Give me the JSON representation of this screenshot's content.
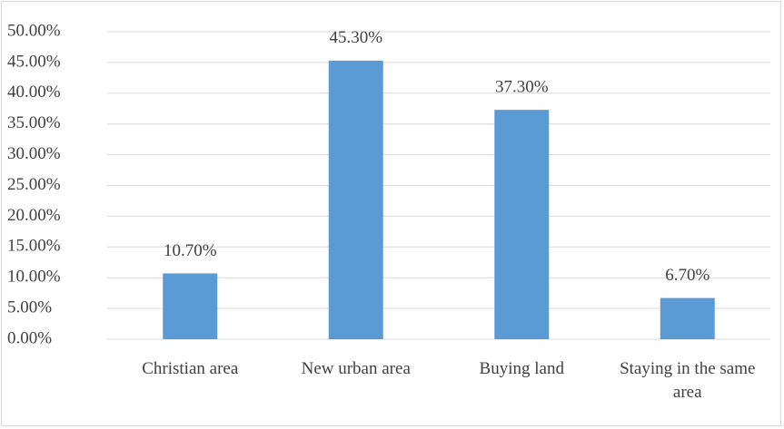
{
  "chart_data": {
    "type": "bar",
    "categories": [
      "Christian area",
      "New urban area",
      "Buying land",
      "Staying in the same area"
    ],
    "values": [
      10.7,
      45.3,
      37.3,
      6.7
    ],
    "value_labels": [
      "10.70%",
      "45.30%",
      "37.30%",
      "6.70%"
    ],
    "color": "#5b9bd5",
    "ylim": [
      0,
      50
    ],
    "yticks": [
      {
        "value": 0,
        "label": "0.00%"
      },
      {
        "value": 5,
        "label": "5.00%"
      },
      {
        "value": 10,
        "label": "10.00%"
      },
      {
        "value": 15,
        "label": "15.00%"
      },
      {
        "value": 20,
        "label": "20.00%"
      },
      {
        "value": 25,
        "label": "25.00%"
      },
      {
        "value": 30,
        "label": "30.00%"
      },
      {
        "value": 35,
        "label": "35.00%"
      },
      {
        "value": 40,
        "label": "40.00%"
      },
      {
        "value": 45,
        "label": "45.00%"
      },
      {
        "value": 50,
        "label": "50.00%"
      }
    ],
    "grid": true
  }
}
